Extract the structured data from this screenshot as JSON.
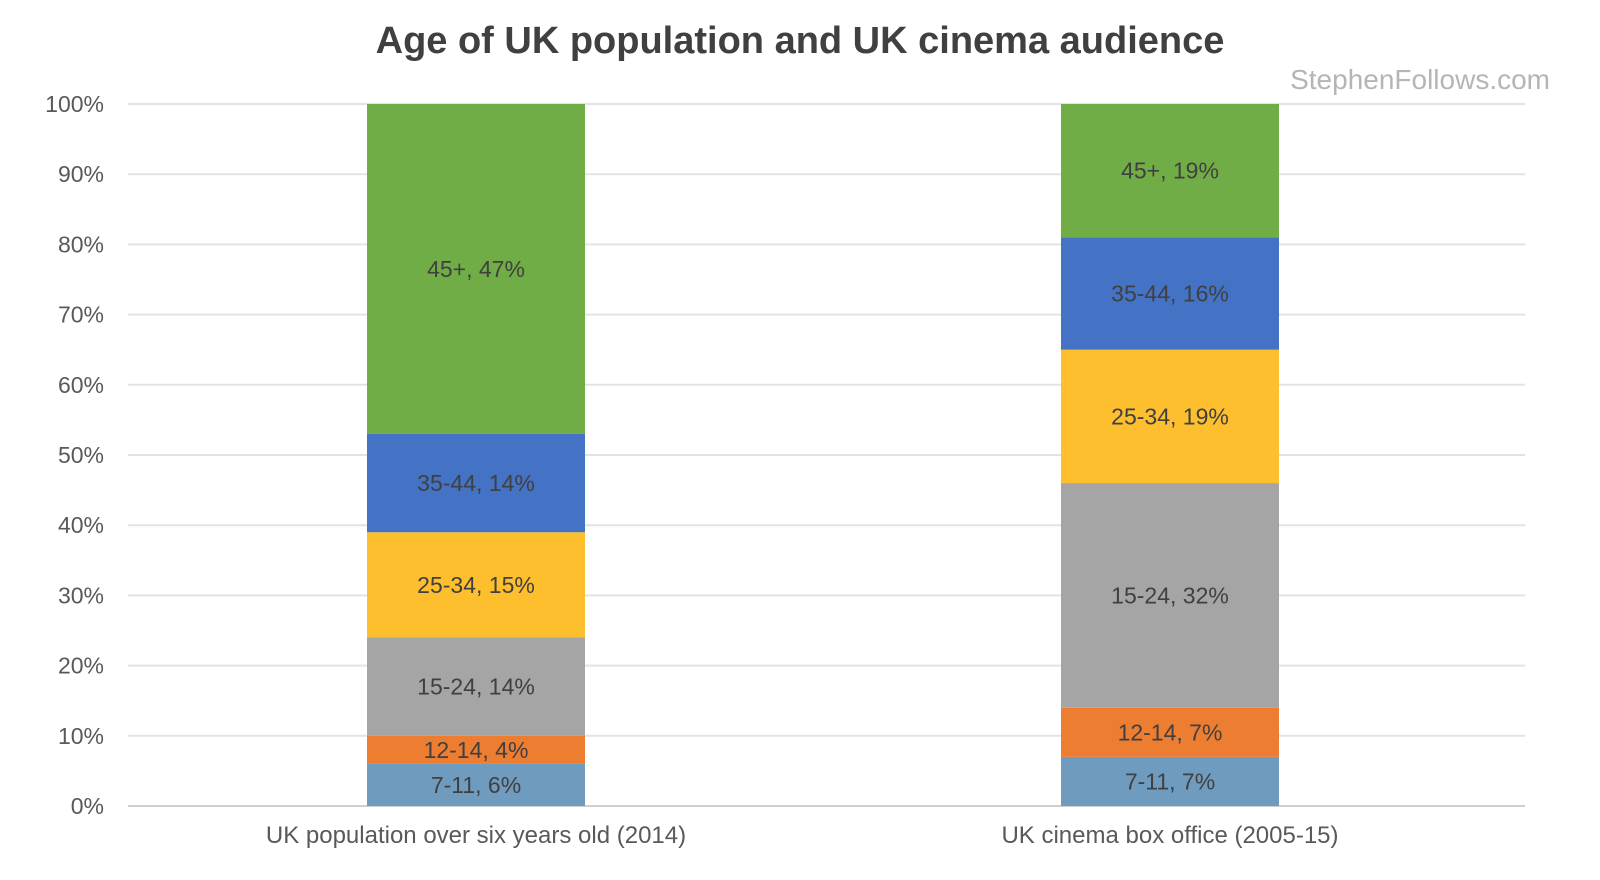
{
  "chart_data": {
    "type": "bar",
    "stacked": true,
    "title": "Age of UK population and UK cinema audience",
    "watermark": "StephenFollows.com",
    "xlabel": "",
    "ylabel": "",
    "ylim": [
      0,
      100
    ],
    "yticks": [
      "0%",
      "10%",
      "20%",
      "30%",
      "40%",
      "50%",
      "60%",
      "70%",
      "80%",
      "90%",
      "100%"
    ],
    "grid": true,
    "categories": [
      "UK population over six years old (2014)",
      "UK cinema box office (2005-15)"
    ],
    "series": [
      {
        "name": "7-11",
        "color": "#6f9bbf",
        "values": [
          6,
          7
        ],
        "labels": [
          "7-11, 6%",
          "7-11, 7%"
        ]
      },
      {
        "name": "12-14",
        "color": "#ed7d31",
        "values": [
          4,
          7
        ],
        "labels": [
          "12-14, 4%",
          "12-14, 7%"
        ]
      },
      {
        "name": "15-24",
        "color": "#a5a5a5",
        "values": [
          14,
          32
        ],
        "labels": [
          "15-24, 14%",
          "15-24, 32%"
        ]
      },
      {
        "name": "25-34",
        "color": "#fdbf2d",
        "values": [
          15,
          19
        ],
        "labels": [
          "25-34, 15%",
          "25-34, 19%"
        ]
      },
      {
        "name": "35-44",
        "color": "#4472c4",
        "values": [
          14,
          16
        ],
        "labels": [
          "35-44, 14%",
          "35-44, 16%"
        ]
      },
      {
        "name": "45+",
        "color": "#70ad47",
        "values": [
          47,
          19
        ],
        "labels": [
          "45+, 47%",
          "45+, 19%"
        ]
      }
    ]
  }
}
